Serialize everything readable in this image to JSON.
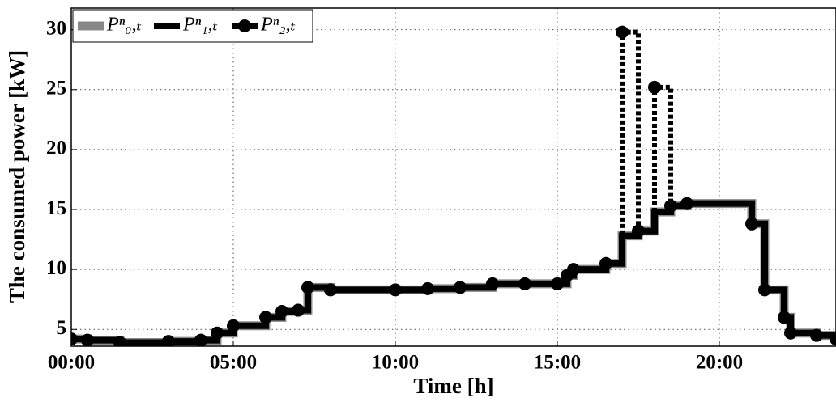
{
  "chart_data": {
    "type": "line",
    "step": "post",
    "xlabel": "Time [h]",
    "ylabel": "The consumed power [kW]",
    "x": [
      0,
      0.5,
      1.5,
      3,
      4,
      4.5,
      5,
      6,
      6.5,
      7,
      7.3,
      8,
      10,
      11,
      12,
      13,
      14,
      15,
      15.3,
      15.5,
      16.5,
      17,
      17.5,
      18,
      18.5,
      19,
      21,
      21.4,
      22,
      22.2,
      23,
      23.6
    ],
    "series": [
      {
        "name": "Pⁿ₀,ₜ",
        "color": "#888888",
        "values": [
          4.2,
          4.1,
          3.9,
          4.0,
          4.1,
          4.7,
          5.3,
          6.0,
          6.5,
          6.6,
          8.5,
          8.3,
          8.3,
          8.4,
          8.5,
          8.8,
          8.8,
          8.8,
          9.5,
          10.0,
          10.5,
          12.8,
          13.2,
          14.8,
          15.3,
          15.5,
          13.8,
          8.3,
          6.0,
          4.7,
          4.5,
          4.2
        ]
      },
      {
        "name": "Pⁿ₁,ₜ",
        "color": "#000000",
        "values": [
          4.2,
          4.1,
          3.9,
          4.0,
          4.1,
          4.7,
          5.3,
          6.0,
          6.5,
          6.6,
          8.5,
          8.3,
          8.3,
          8.4,
          8.5,
          8.8,
          8.8,
          8.8,
          9.5,
          10.0,
          10.5,
          12.8,
          13.2,
          14.8,
          15.3,
          15.5,
          13.8,
          8.3,
          6.0,
          4.7,
          4.5,
          4.2
        ]
      },
      {
        "name": "Pⁿ₂,ₜ",
        "color": "#000000",
        "marker": "circle",
        "values": [
          4.2,
          4.1,
          3.9,
          4.0,
          4.1,
          4.7,
          5.3,
          6.0,
          6.5,
          6.6,
          8.5,
          8.3,
          8.3,
          8.4,
          8.5,
          8.8,
          8.8,
          8.8,
          9.5,
          10.0,
          10.5,
          29.8,
          13.2,
          25.2,
          15.3,
          15.5,
          13.8,
          8.3,
          6.0,
          4.7,
          4.5,
          4.2
        ]
      }
    ],
    "xlim": [
      0,
      23.6
    ],
    "ylim": [
      3.6,
      31.8
    ],
    "xticks": [
      {
        "value": 0,
        "label": "00:00"
      },
      {
        "value": 5,
        "label": "05:00"
      },
      {
        "value": 10,
        "label": "10:00"
      },
      {
        "value": 15,
        "label": "15:00"
      },
      {
        "value": 20,
        "label": "20:00"
      }
    ],
    "yticks": [
      5,
      10,
      15,
      20,
      25,
      30
    ],
    "grid": true,
    "legend": "upper left"
  }
}
